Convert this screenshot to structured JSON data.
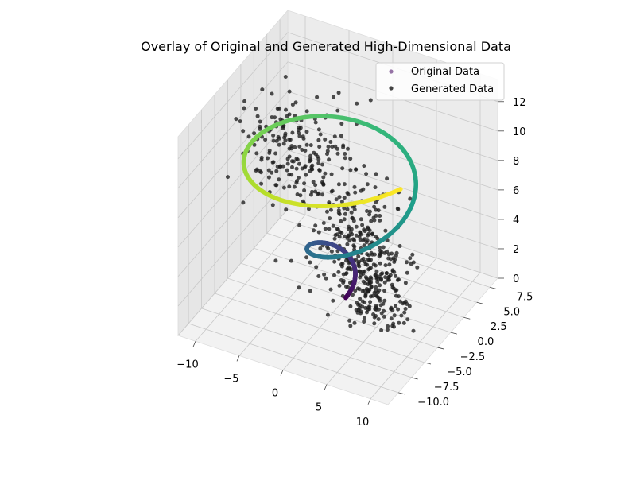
{
  "chart_data": {
    "type": "scatter",
    "projection": "3d",
    "title": "Overlay of Original and Generated High-Dimensional Data",
    "xlabel": "",
    "ylabel": "",
    "zlabel": "",
    "x_ticks": [
      "−10",
      "−5",
      "0",
      "5",
      "10"
    ],
    "y_ticks": [
      "−10.0",
      "−7.5",
      "−5.0",
      "−2.5",
      "0.0",
      "2.5",
      "5.0",
      "7.5"
    ],
    "z_ticks": [
      "0",
      "2",
      "4",
      "6",
      "8",
      "10",
      "12"
    ],
    "xlim": [
      -12,
      12
    ],
    "ylim": [
      -12,
      9
    ],
    "zlim": [
      0,
      13.5
    ],
    "grid": true,
    "legend_position": "upper right",
    "colormap": "viridis",
    "series": [
      {
        "name": "Original Data",
        "marker": "circle",
        "color": "#7b4f8e",
        "kind": "spiral",
        "x_function": "t*cos(t)",
        "y_function": "t*sin(t)",
        "z_function": "t",
        "t_range": [
          0,
          12
        ]
      },
      {
        "name": "Generated Data",
        "marker": "circle",
        "color": "#222222",
        "kind": "cloud",
        "description": "dense black point cloud filling the spiral interior"
      }
    ]
  }
}
